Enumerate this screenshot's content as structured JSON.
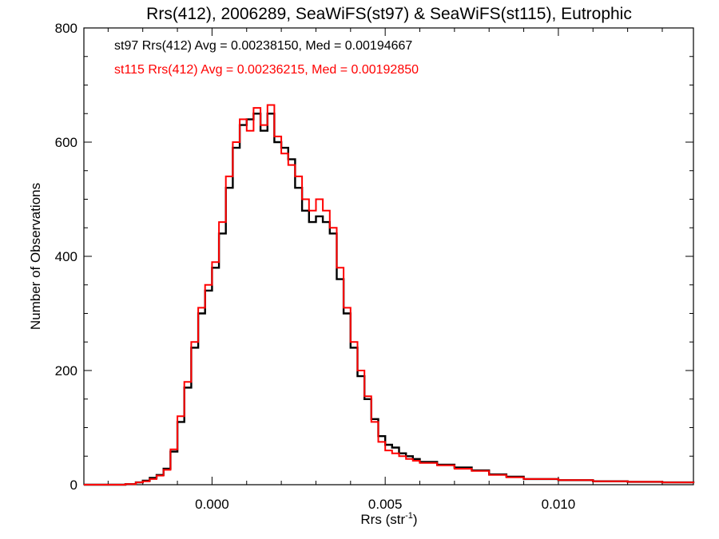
{
  "chart_data": {
    "type": "line",
    "style": "histogram-step",
    "title": "Rrs(412), 2006289, SeaWiFS(st97) & SeaWiFS(st115), Eutrophic",
    "xlabel_main": "Rrs (str",
    "xlabel_sup": "-1",
    "xlabel_end": ")",
    "ylabel": "Number of Observations",
    "xlim": [
      -0.0037,
      0.0139
    ],
    "ylim": [
      0,
      800
    ],
    "xticks": [
      0.0,
      0.005,
      0.01
    ],
    "xtick_labels": [
      "0.000",
      "0.005",
      "0.010"
    ],
    "yticks": [
      0,
      200,
      400,
      600,
      800
    ],
    "ytick_labels": [
      "0",
      "200",
      "400",
      "600",
      "800"
    ],
    "grid": false,
    "legend_position": "top-left",
    "series": [
      {
        "name": "st97 Rrs(412) Avg = 0.00238150, Med = 0.00194667",
        "color": "#000000",
        "x": [
          -0.0037,
          -0.003,
          -0.0025,
          -0.0022,
          -0.002,
          -0.0018,
          -0.0016,
          -0.0014,
          -0.0012,
          -0.001,
          -0.0008,
          -0.0006,
          -0.0004,
          -0.0002,
          0.0,
          0.0002,
          0.0004,
          0.0006,
          0.0008,
          0.001,
          0.0012,
          0.0014,
          0.0016,
          0.0018,
          0.002,
          0.0022,
          0.0024,
          0.0026,
          0.0028,
          0.003,
          0.0032,
          0.0034,
          0.0036,
          0.0038,
          0.004,
          0.0042,
          0.0044,
          0.0046,
          0.0048,
          0.005,
          0.0052,
          0.0054,
          0.0056,
          0.0058,
          0.006,
          0.0065,
          0.007,
          0.0075,
          0.008,
          0.0085,
          0.009,
          0.01,
          0.011,
          0.012,
          0.013,
          0.0139
        ],
        "y": [
          0,
          0,
          1,
          4,
          7,
          12,
          17,
          28,
          58,
          110,
          170,
          240,
          300,
          340,
          380,
          440,
          520,
          590,
          630,
          640,
          650,
          620,
          650,
          600,
          590,
          570,
          520,
          480,
          460,
          470,
          460,
          440,
          360,
          300,
          240,
          190,
          150,
          115,
          85,
          70,
          65,
          55,
          50,
          45,
          40,
          35,
          30,
          25,
          18,
          14,
          10,
          8,
          6,
          5,
          4,
          3
        ]
      },
      {
        "name": "st115 Rrs(412) Avg = 0.00236215, Med = 0.00192850",
        "color": "#ff0000",
        "x": [
          -0.0037,
          -0.003,
          -0.0025,
          -0.0022,
          -0.002,
          -0.0018,
          -0.0016,
          -0.0014,
          -0.0012,
          -0.001,
          -0.0008,
          -0.0006,
          -0.0004,
          -0.0002,
          0.0,
          0.0002,
          0.0004,
          0.0006,
          0.0008,
          0.001,
          0.0012,
          0.0014,
          0.0016,
          0.0018,
          0.002,
          0.0022,
          0.0024,
          0.0026,
          0.0028,
          0.003,
          0.0032,
          0.0034,
          0.0036,
          0.0038,
          0.004,
          0.0042,
          0.0044,
          0.0046,
          0.0048,
          0.005,
          0.0052,
          0.0054,
          0.0056,
          0.0058,
          0.006,
          0.0065,
          0.007,
          0.0075,
          0.008,
          0.0085,
          0.009,
          0.01,
          0.011,
          0.012,
          0.013,
          0.0139
        ],
        "y": [
          0,
          0,
          1,
          4,
          6,
          10,
          16,
          26,
          62,
          120,
          180,
          250,
          310,
          350,
          390,
          460,
          540,
          600,
          640,
          620,
          660,
          630,
          665,
          610,
          580,
          560,
          540,
          500,
          480,
          500,
          480,
          450,
          380,
          310,
          250,
          200,
          155,
          110,
          75,
          60,
          55,
          50,
          45,
          42,
          38,
          34,
          28,
          24,
          17,
          13,
          10,
          8,
          6,
          5,
          4,
          3
        ]
      }
    ]
  }
}
